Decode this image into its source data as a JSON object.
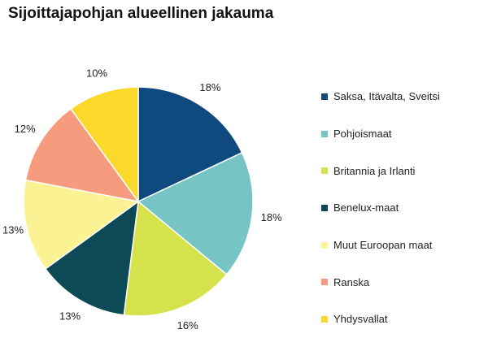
{
  "chart_data": {
    "type": "pie",
    "title": "Sijoittajapohjan alueellinen jakauma",
    "categories": [
      "Saksa, Itävalta, Sveitsi",
      "Pohjoismaat",
      "Britannia ja Irlanti",
      "Benelux-maat",
      "Muut Euroopan maat",
      "Ranska",
      "Yhdysvallat"
    ],
    "values": [
      18,
      18,
      16,
      13,
      13,
      12,
      10
    ],
    "labels": [
      "18%",
      "18%",
      "16%",
      "13%",
      "13%",
      "12%",
      "10%"
    ],
    "colors": [
      "#0f4a7e",
      "#76c5c4",
      "#d6e24b",
      "#0d4a55",
      "#fbf393",
      "#f79b7f",
      "#fbd92a"
    ],
    "legend_position": "right",
    "start_angle": "12 o'clock, clockwise"
  }
}
